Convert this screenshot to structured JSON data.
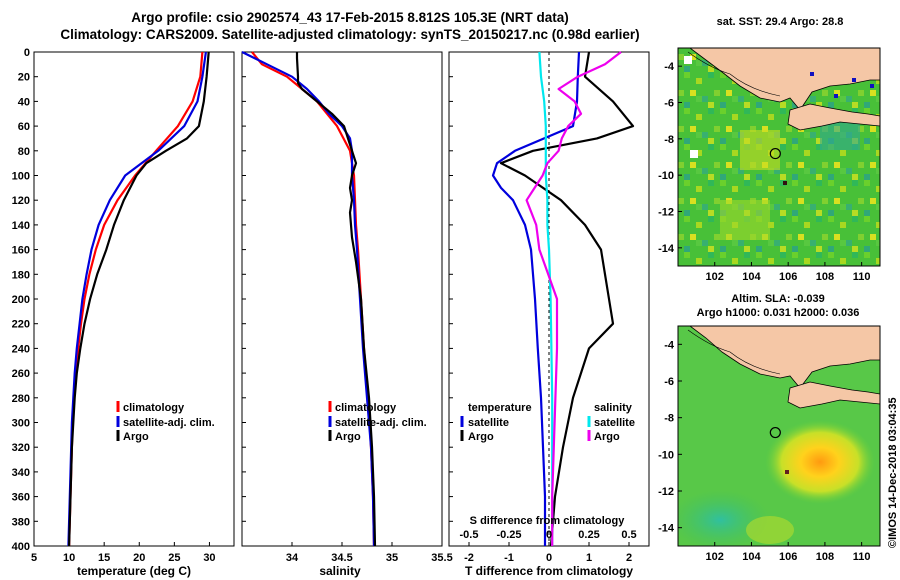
{
  "header": {
    "line1": "Argo profile: csio 2902574_43 17-Feb-2015 8.812S 105.3E (NRT data)",
    "line2": "Climatology: CARS2009. Satellite-adjusted climatology: synTS_20150217.nc (0.98d earlier)"
  },
  "stamp": "©IMOS 14-Dec-2018 03:04:35",
  "colors": {
    "climatology": "#ff0000",
    "satellite": "#0000dd",
    "argo": "#000000",
    "sat_salinity": "#00e8ee",
    "argo_salinity": "#ee00ee"
  },
  "chart_data": [
    {
      "type": "line",
      "id": "temperature",
      "xlabel": "temperature (deg C)",
      "ylabel": "",
      "xlim": [
        5,
        33.5
      ],
      "ylim": [
        400,
        0
      ],
      "x_ticks": [
        5,
        10,
        15,
        20,
        25,
        30
      ],
      "y_ticks": [
        0,
        20,
        40,
        60,
        80,
        100,
        120,
        140,
        160,
        180,
        200,
        220,
        240,
        260,
        280,
        300,
        320,
        340,
        360,
        380,
        400
      ],
      "legend_position": "lower-right",
      "legend": [
        "climatology",
        "satellite-adj. clim.",
        "Argo"
      ],
      "series": [
        {
          "name": "climatology",
          "color": "#ff0000",
          "depth": [
            0,
            20,
            40,
            60,
            80,
            100,
            120,
            140,
            160,
            180,
            200,
            220,
            240,
            260,
            280,
            300,
            320,
            340,
            360,
            380,
            400
          ],
          "values": [
            29.0,
            28.7,
            27.6,
            25.5,
            22.4,
            19.4,
            16.9,
            15.0,
            13.8,
            12.9,
            12.2,
            11.7,
            11.3,
            11.0,
            10.7,
            10.5,
            10.4,
            10.3,
            10.2,
            10.1,
            10.0
          ]
        },
        {
          "name": "satellite-adj. clim.",
          "color": "#0000dd",
          "depth": [
            0,
            20,
            40,
            60,
            80,
            100,
            120,
            140,
            160,
            180,
            200,
            220,
            240,
            260,
            280,
            300,
            320,
            340,
            360,
            380,
            400
          ],
          "values": [
            29.5,
            29.0,
            28.3,
            26.4,
            22.7,
            18.0,
            15.8,
            14.2,
            13.2,
            12.5,
            11.9,
            11.5,
            11.1,
            10.8,
            10.6,
            10.4,
            10.3,
            10.2,
            10.1,
            10.0,
            9.9
          ]
        },
        {
          "name": "Argo",
          "color": "#000000",
          "depth": [
            0,
            20,
            40,
            60,
            70,
            80,
            90,
            100,
            120,
            140,
            160,
            180,
            200,
            220,
            240,
            260,
            280,
            300,
            320,
            340,
            360,
            380,
            400
          ],
          "values": [
            29.9,
            29.6,
            29.2,
            28.5,
            26.8,
            23.8,
            21.0,
            19.6,
            17.8,
            16.4,
            15.3,
            14.0,
            13.0,
            12.2,
            11.6,
            11.1,
            10.8,
            10.6,
            10.4,
            10.3,
            10.2,
            10.1,
            10.0
          ]
        }
      ]
    },
    {
      "type": "line",
      "id": "salinity",
      "xlabel": "salinity",
      "xlim": [
        33.5,
        35.5
      ],
      "ylim": [
        400,
        0
      ],
      "x_ticks": [
        34,
        34.5,
        35,
        35.5
      ],
      "x_tick_labels": [
        "34",
        "34.5",
        "35",
        "35.5"
      ],
      "legend_position": "lower-right",
      "legend": [
        "climatology",
        "satellite-adj. clim.",
        "Argo"
      ],
      "series": [
        {
          "name": "climatology",
          "color": "#ff0000",
          "depth": [
            0,
            10,
            20,
            30,
            40,
            60,
            80,
            100,
            120,
            140,
            160,
            200,
            240,
            280,
            320,
            360,
            400
          ],
          "values": [
            33.6,
            33.7,
            33.95,
            34.1,
            34.25,
            34.45,
            34.58,
            34.62,
            34.63,
            34.64,
            34.66,
            34.69,
            34.72,
            34.76,
            34.79,
            34.81,
            34.82
          ]
        },
        {
          "name": "satellite-adj. clim.",
          "color": "#0000dd",
          "depth": [
            0,
            10,
            20,
            30,
            40,
            50,
            60,
            70,
            80,
            100,
            120,
            140,
            160,
            200,
            240,
            280,
            320,
            360,
            400
          ],
          "values": [
            33.5,
            33.75,
            34.0,
            34.15,
            34.27,
            34.37,
            34.5,
            34.58,
            34.6,
            34.6,
            34.62,
            34.63,
            34.65,
            34.68,
            34.71,
            34.75,
            34.79,
            34.81,
            34.82
          ]
        },
        {
          "name": "Argo",
          "color": "#000000",
          "depth": [
            0,
            5,
            20,
            25,
            30,
            40,
            50,
            60,
            80,
            90,
            100,
            110,
            120,
            130,
            150,
            170,
            200,
            240,
            280,
            320,
            360,
            400
          ],
          "values": [
            34.05,
            34.05,
            34.06,
            34.06,
            34.1,
            34.25,
            34.4,
            34.52,
            34.6,
            34.64,
            34.6,
            34.58,
            34.6,
            34.58,
            34.6,
            34.64,
            34.69,
            34.72,
            34.77,
            34.8,
            34.82,
            34.83
          ]
        }
      ]
    },
    {
      "type": "line",
      "id": "difference",
      "xlabel": "T difference from climatology",
      "xlim": [
        -2.5,
        2.5
      ],
      "ylim": [
        400,
        0
      ],
      "x_ticks": [
        -2,
        -1,
        0,
        1,
        2
      ],
      "secondary_axis_label": "S difference from climatology",
      "secondary_ticks": [
        "-0.5",
        "-0.25",
        "0",
        "0.25",
        "0.5"
      ],
      "legend_position": "lower-left and lower-right",
      "legend_temperature": {
        "title": "temperature",
        "items": [
          "satellite",
          "Argo"
        ]
      },
      "legend_salinity": {
        "title": "salinity",
        "items": [
          "satellite",
          "Argo"
        ]
      },
      "series": [
        {
          "name": "temperature satellite",
          "color": "#0000dd",
          "depth": [
            0,
            20,
            40,
            60,
            80,
            90,
            100,
            110,
            120,
            140,
            160,
            200,
            240,
            280,
            320,
            360,
            400
          ],
          "values": [
            0.75,
            0.72,
            0.7,
            0.6,
            -0.85,
            -1.3,
            -1.4,
            -1.2,
            -0.9,
            -0.6,
            -0.45,
            -0.35,
            -0.28,
            -0.2,
            -0.15,
            -0.1,
            -0.1
          ]
        },
        {
          "name": "temperature Argo",
          "color": "#000000",
          "depth": [
            0,
            20,
            40,
            60,
            70,
            80,
            90,
            100,
            120,
            140,
            160,
            180,
            200,
            220,
            240,
            280,
            320,
            360,
            400
          ],
          "values": [
            1.0,
            0.9,
            1.6,
            2.1,
            1.2,
            -0.4,
            -1.2,
            -0.6,
            0.3,
            0.9,
            1.3,
            1.4,
            1.5,
            1.6,
            1.0,
            0.6,
            0.35,
            0.15,
            0.05
          ]
        },
        {
          "name": "salinity satellite",
          "color": "#00e8ee",
          "depth": [
            0,
            20,
            40,
            60,
            80,
            100,
            120,
            140,
            160,
            200,
            240,
            280,
            320,
            360,
            400
          ],
          "values": [
            -0.06,
            -0.05,
            -0.03,
            -0.02,
            -0.02,
            -0.02,
            -0.01,
            -0.01,
            0.0,
            0.01,
            0.015,
            0.02,
            0.02,
            0.02,
            0.02
          ]
        },
        {
          "name": "salinity Argo",
          "color": "#ee00ee",
          "depth": [
            0,
            10,
            20,
            30,
            40,
            50,
            60,
            70,
            80,
            90,
            100,
            110,
            120,
            140,
            160,
            200,
            240,
            280,
            320,
            360,
            400
          ],
          "values": [
            0.45,
            0.35,
            0.18,
            0.06,
            0.16,
            0.2,
            0.12,
            0.08,
            0.06,
            -0.01,
            -0.04,
            -0.09,
            -0.14,
            -0.08,
            -0.06,
            0.05,
            0.05,
            0.04,
            0.03,
            0.02,
            0.02
          ]
        }
      ]
    },
    {
      "type": "heatmap",
      "id": "sst-map",
      "title": "sat. SST: 29.4 Argo: 28.8",
      "x_ticks": [
        102,
        104,
        106,
        108,
        110
      ],
      "y_ticks": [
        -4,
        -6,
        -8,
        -10,
        -12,
        -14
      ],
      "xlim": [
        100,
        111
      ],
      "ylim": [
        -15,
        -3
      ],
      "argo_position": {
        "lon": 105.3,
        "lat": -8.812
      }
    },
    {
      "type": "heatmap",
      "id": "sla-map",
      "title_line1": "Altim. SLA: -0.039",
      "title_line2": "Argo h1000: 0.031 h2000: 0.036",
      "x_ticks": [
        102,
        104,
        106,
        108,
        110
      ],
      "y_ticks": [
        -4,
        -6,
        -8,
        -10,
        -12,
        -14
      ],
      "xlim": [
        100,
        111
      ],
      "ylim": [
        -15,
        -3
      ],
      "argo_position": {
        "lon": 105.3,
        "lat": -8.812
      }
    }
  ]
}
